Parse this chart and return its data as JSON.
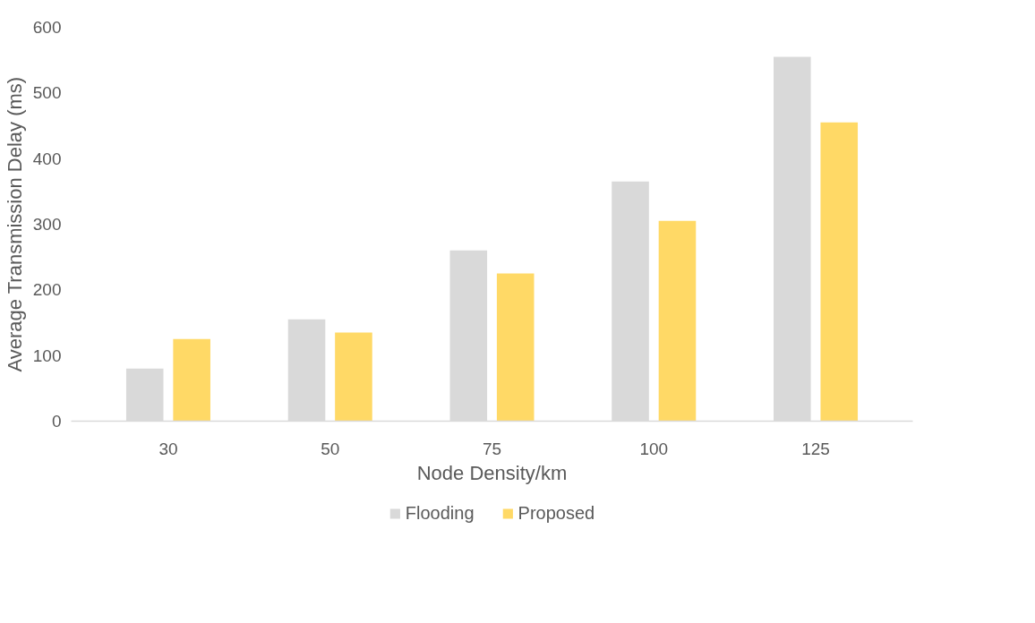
{
  "chart_data": {
    "type": "bar",
    "xlabel": "Node Density/km",
    "ylabel": "Average Transmission Delay (ms)",
    "categories": [
      "30",
      "50",
      "75",
      "100",
      "125"
    ],
    "series": [
      {
        "name": "Flooding",
        "color": "#d9d9d9",
        "values": [
          80,
          155,
          260,
          365,
          555
        ]
      },
      {
        "name": "Proposed",
        "color": "#ffd966",
        "values": [
          125,
          135,
          225,
          305,
          455
        ]
      }
    ],
    "ylim": [
      0,
      600
    ],
    "yticks": [
      0,
      100,
      200,
      300,
      400,
      500,
      600
    ],
    "grid": false,
    "legend": "bottom"
  }
}
